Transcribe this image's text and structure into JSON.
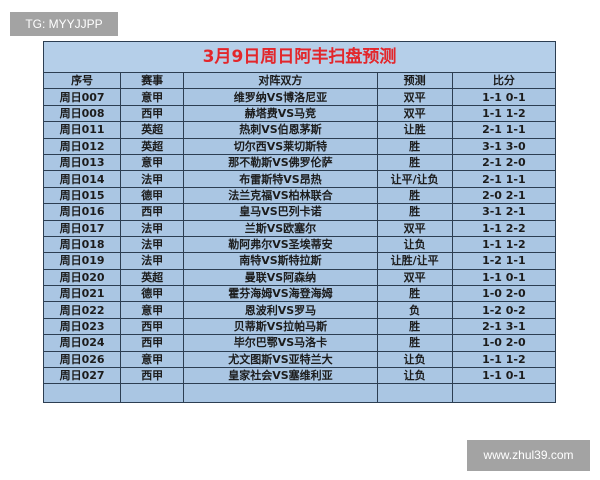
{
  "watermarks": {
    "top": "TG: MYYJJPP",
    "bottom": "www.zhul39.com"
  },
  "title": "3月9日周日阿丰扫盘预测",
  "headers": [
    "序号",
    "赛事",
    "对阵双方",
    "预测",
    "比分"
  ],
  "rows": [
    [
      "周日007",
      "意甲",
      "维罗纳VS博洛尼亚",
      "双平",
      "1-1 0-1"
    ],
    [
      "周日008",
      "西甲",
      "赫塔费VS马竞",
      "双平",
      "1-1 1-2"
    ],
    [
      "周日011",
      "英超",
      "热刺VS伯恩茅斯",
      "让胜",
      "2-1 1-1"
    ],
    [
      "周日012",
      "英超",
      "切尔西VS莱切斯特",
      "胜",
      "3-1 3-0"
    ],
    [
      "周日013",
      "意甲",
      "那不勒斯VS佛罗伦萨",
      "胜",
      "2-1 2-0"
    ],
    [
      "周日014",
      "法甲",
      "布雷斯特VS昂热",
      "让平/让负",
      "2-1 1-1"
    ],
    [
      "周日015",
      "德甲",
      "法兰克福VS柏林联合",
      "胜",
      "2-0 2-1"
    ],
    [
      "周日016",
      "西甲",
      "皇马VS巴列卡诺",
      "胜",
      "3-1 2-1"
    ],
    [
      "周日017",
      "法甲",
      "兰斯VS欧塞尔",
      "双平",
      "1-1 2-2"
    ],
    [
      "周日018",
      "法甲",
      "勒阿弗尔VS圣埃蒂安",
      "让负",
      "1-1 1-2"
    ],
    [
      "周日019",
      "法甲",
      "南特VS斯特拉斯",
      "让胜/让平",
      "1-2 1-1"
    ],
    [
      "周日020",
      "英超",
      "曼联VS阿森纳",
      "双平",
      "1-1 0-1"
    ],
    [
      "周日021",
      "德甲",
      "霍芬海姆VS海登海姆",
      "胜",
      "1-0 2-0"
    ],
    [
      "周日022",
      "意甲",
      "恩波利VS罗马",
      "负",
      "1-2 0-2"
    ],
    [
      "周日023",
      "西甲",
      "贝蒂斯VS拉帕马斯",
      "胜",
      "2-1 3-1"
    ],
    [
      "周日024",
      "西甲",
      "毕尔巴鄂VS马洛卡",
      "胜",
      "1-0 2-0"
    ],
    [
      "周日026",
      "意甲",
      "尤文图斯VS亚特兰大",
      "让负",
      "1-1 1-2"
    ],
    [
      "周日027",
      "西甲",
      "皇家社会VS塞维利亚",
      "让负",
      "1-1 0-1"
    ]
  ],
  "colors": {
    "title": "#e3262b",
    "table_bg": "#aac6e3",
    "border": "#2c3e52"
  }
}
